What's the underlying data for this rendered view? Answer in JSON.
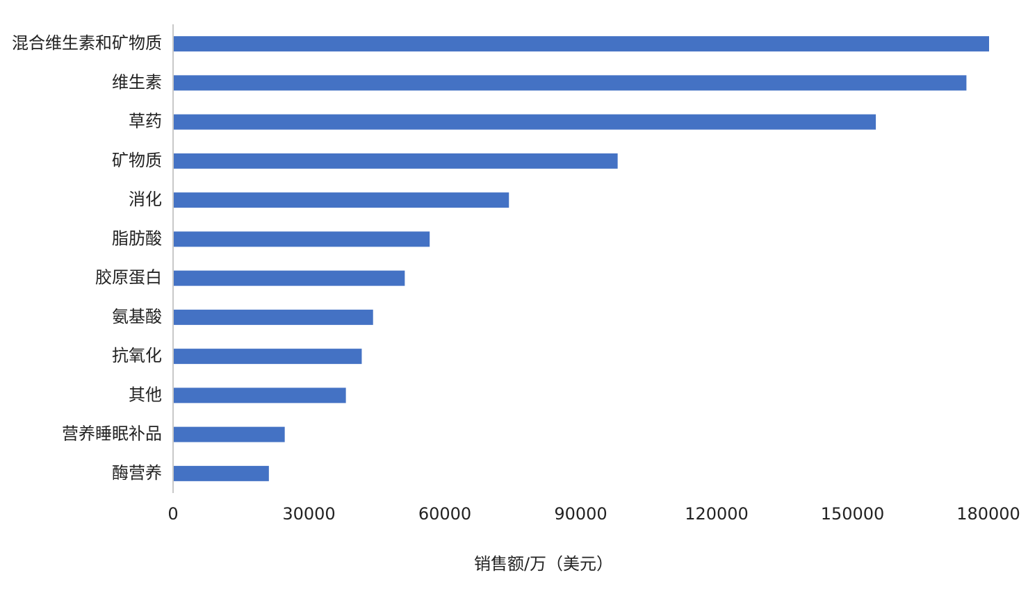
{
  "chart_data": {
    "type": "hbar",
    "x_label": "销售额/万（美元）",
    "categories": [
      "混合维生素和矿物质",
      "维生素",
      "草药",
      "矿物质",
      "消化",
      "脂肪酸",
      "胶原蛋白",
      "氨基酸",
      "抗氧化",
      "其他",
      "营养睡眠补品",
      "酶营养"
    ],
    "values": [
      180000,
      175000,
      155000,
      98000,
      74000,
      56500,
      51000,
      44000,
      41500,
      38000,
      24500,
      21000
    ],
    "color": "#4472c4",
    "xlim": [
      0,
      180000
    ],
    "xticks": [
      0,
      30000,
      60000,
      90000,
      120000,
      150000,
      180000
    ],
    "grid": false
  }
}
